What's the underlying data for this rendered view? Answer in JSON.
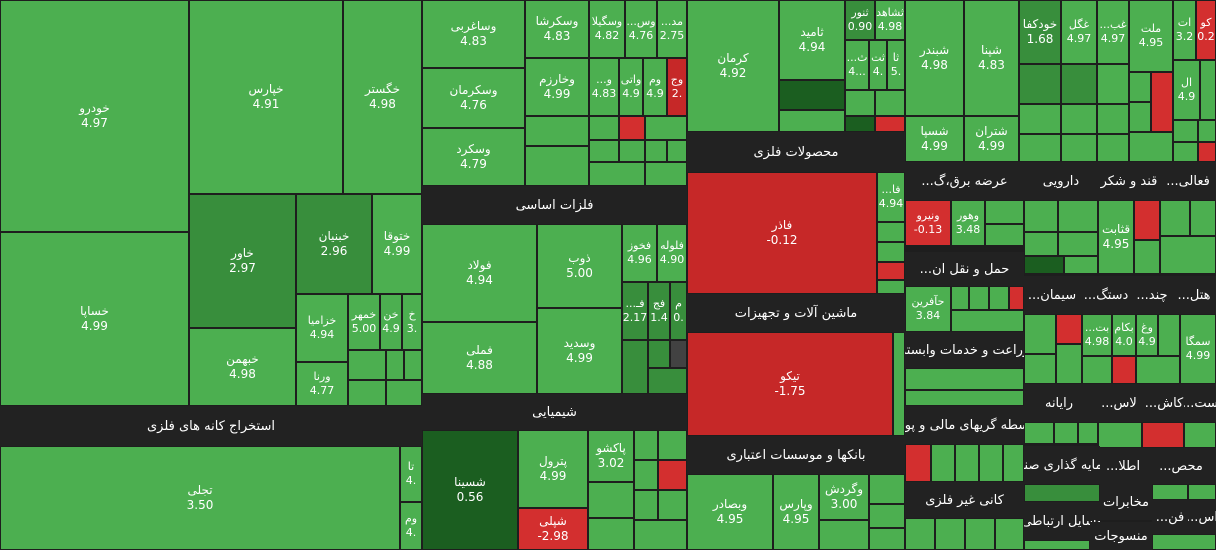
{
  "sectors": {
    "mining": "استخراج کانه های فلزی",
    "basic_metals": "فلزات اساسی",
    "chemicals": "شیمیایی",
    "metal_products": "محصولات فلزی",
    "machinery": "ماشین آلات و تجهیزات",
    "banks": "بانکها و موسسات اعتباری",
    "power": "عرضه برق،گ...",
    "transport": "حمل و نقل ان...",
    "agriculture": "زراعت و خدمات وابسته",
    "financial": "واسطه گریهای مالی و پولی",
    "nonmetal": "کانی غیر فلزی",
    "pharma": "دارویی",
    "sugar": "قند و شکر",
    "activities": "فعالی...",
    "cement": "سیمان...",
    "equipment": "دستگ...",
    "multi": "چند...",
    "hotel": "هتل...",
    "computer": "رایانه",
    "tiles": "کاش...",
    "gold": "لاس...",
    "ost": "ست...",
    "investment": "سرمایه گذاری صنعتی",
    "etela": "اطلا...",
    "products": "محص...",
    "comm": "مخابرات",
    "radio": "وسایل ارتباطی",
    "textiles": "منسوجات",
    "fan": "فن...",
    "as": "اس..."
  },
  "tiles": {
    "khodro": {
      "sym": "خودرو",
      "val": "4.97"
    },
    "khesapa": {
      "sym": "خساپا",
      "val": "4.99"
    },
    "kharis": {
      "sym": "خپارس",
      "val": "4.91"
    },
    "khegostar": {
      "sym": "خگستر",
      "val": "4.98"
    },
    "khavar": {
      "sym": "خاور",
      "val": "2.97"
    },
    "kheniyan": {
      "sym": "خبنیان",
      "val": "2.96"
    },
    "khotoga": {
      "sym": "ختوقا",
      "val": "4.99"
    },
    "khezamia": {
      "sym": "خزامیا",
      "val": "4.94"
    },
    "khemehr": {
      "sym": "خمهر",
      "val": "5.00"
    },
    "khen": {
      "sym": "خن",
      "val": "4.9"
    },
    "kh": {
      "sym": "خ",
      "val": "3."
    },
    "khebahman": {
      "sym": "خبهمن",
      "val": "4.98"
    },
    "varna": {
      "sym": "ورنا",
      "val": "4.77"
    },
    "tejli": {
      "sym": "تجلی",
      "val": "3.50"
    },
    "ta": {
      "sym": "تا",
      "val": "4."
    },
    "vam": {
      "sym": "وم",
      "val": "4."
    },
    "vasaghrbi": {
      "sym": "وساغربی",
      "val": "4.83"
    },
    "vaskarsha": {
      "sym": "وسکرشا",
      "val": "4.83"
    },
    "vasgila": {
      "sym": "وسگیلا",
      "val": "4.82"
    },
    "vas": {
      "sym": "وس...",
      "val": "4.76"
    },
    "mad": {
      "sym": "مد...",
      "val": "2.75"
    },
    "vaskerman": {
      "sym": "وسکرمان",
      "val": "4.76"
    },
    "vakharazm": {
      "sym": "وخارزم",
      "val": "4.99"
    },
    "va": {
      "sym": "و...",
      "val": "4.83"
    },
    "vati": {
      "sym": "واتی",
      "val": "4.9"
    },
    "vom": {
      "sym": "وم",
      "val": "4.9"
    },
    "voj": {
      "sym": "وج",
      "val": "2."
    },
    "vaskurd": {
      "sym": "وسکرد",
      "val": "4.79"
    },
    "fuladh": {
      "sym": "فولاد",
      "val": "4.94"
    },
    "zob": {
      "sym": "ذوب",
      "val": "5.00"
    },
    "fakhouz": {
      "sym": "فخوز",
      "val": "4.96"
    },
    "faloleh": {
      "sym": "فلوله",
      "val": "4.90"
    },
    "fameli": {
      "sym": "فملی",
      "val": "4.88"
    },
    "vasadid": {
      "sym": "وسدید",
      "val": "4.99"
    },
    "fa": {
      "sym": "فـ...",
      "val": "2.17"
    },
    "faj": {
      "sym": "فج",
      "val": "1.4"
    },
    "m": {
      "sym": "م",
      "val": "0."
    },
    "shasina": {
      "sym": "شسینا",
      "val": "0.56"
    },
    "petrol": {
      "sym": "پترول",
      "val": "4.99"
    },
    "paksho": {
      "sym": "پاکشو",
      "val": "3.02"
    },
    "shebli": {
      "sym": "شپلی",
      "val": "-2.98"
    },
    "kerman": {
      "sym": "کرمان",
      "val": "4.92"
    },
    "tamid": {
      "sym": "ثامید",
      "val": "4.94"
    },
    "sanur": {
      "sym": "ثنور",
      "val": "0.90"
    },
    "shahed": {
      "sym": "ثشاهد",
      "val": "4.98"
    },
    "sa1": {
      "sym": "ثا",
      "val": "5."
    },
    "sa2": {
      "sym": "ثت",
      "val": "4."
    },
    "sa3": {
      "sym": "ث...",
      "val": "4..."
    },
    "fazar": {
      "sym": "فاذر",
      "val": "-0.12"
    },
    "fa2": {
      "sym": "فا...",
      "val": "4.94"
    },
    "tiko": {
      "sym": "تیکو",
      "val": "-1.75"
    },
    "vabsader": {
      "sym": "وبصادر",
      "val": "4.95"
    },
    "vaparas": {
      "sym": "وپارس",
      "val": "4.95"
    },
    "vagardesh": {
      "sym": "وگردش",
      "val": "3.00"
    },
    "shabandar": {
      "sym": "شبندر",
      "val": "4.98"
    },
    "shana": {
      "sym": "شپنا",
      "val": "4.83"
    },
    "shesepa": {
      "sym": "شسپا",
      "val": "4.99"
    },
    "sharan": {
      "sym": "شتران",
      "val": "4.99"
    },
    "khodkafa": {
      "sym": "خودکفا",
      "val": "1.68"
    },
    "ghegol": {
      "sym": "غگل",
      "val": "4.97"
    },
    "ghab": {
      "sym": "غب...",
      "val": "4.97"
    },
    "malat": {
      "sym": "ملت",
      "val": "4.95"
    },
    "at": {
      "sym": "ات",
      "val": "3.2"
    },
    "ko": {
      "sym": "کو",
      "val": "0.2"
    },
    "al": {
      "sym": "ال",
      "val": "4.9"
    },
    "vanirou": {
      "sym": "ونیرو",
      "val": "-0.13"
    },
    "vahour": {
      "sym": "وهور",
      "val": "3.48"
    },
    "hafarin": {
      "sym": "حآفرین",
      "val": "3.84"
    },
    "ghasabet": {
      "sym": "قثابت",
      "val": "4.95"
    },
    "bet": {
      "sym": "بت...",
      "val": "4.98"
    },
    "bakam": {
      "sym": "بکام",
      "val": "4.0"
    },
    "vagh": {
      "sym": "وغ",
      "val": "4.9"
    },
    "sameka": {
      "sym": "سمگا",
      "val": "4.99"
    }
  }
}
